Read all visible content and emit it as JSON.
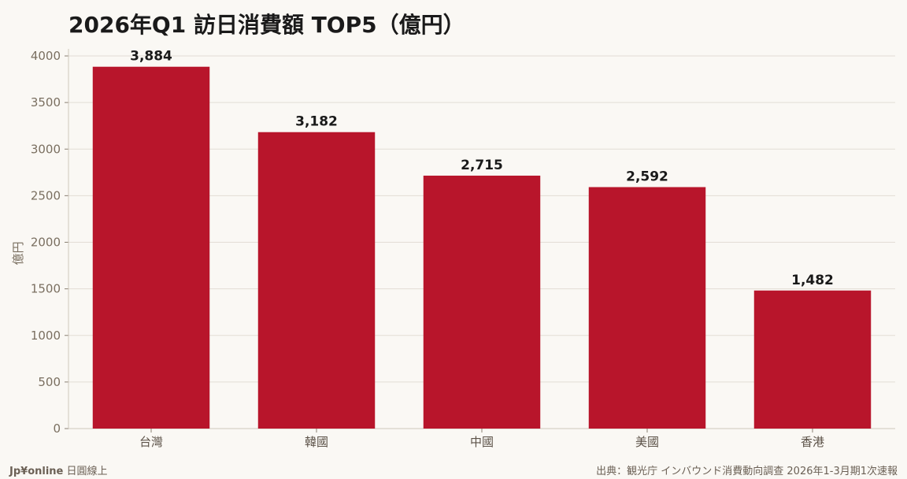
{
  "chart_data": {
    "type": "bar",
    "title": "2026年Q1 訪日消費額 TOP5（億円）",
    "ylabel": "億円",
    "categories": [
      "台灣",
      "韓國",
      "中國",
      "美國",
      "香港"
    ],
    "values": [
      3884,
      3182,
      2715,
      2592,
      1482
    ],
    "value_labels": [
      "3,884",
      "3,182",
      "2,715",
      "2,592",
      "1,482"
    ],
    "ylim": [
      0,
      4000
    ],
    "yticks": [
      0,
      500,
      1000,
      1500,
      2000,
      2500,
      3000,
      3500,
      4000
    ],
    "grid": true,
    "bar_color": "#b8152b"
  },
  "footer": {
    "brand": "Jp¥online",
    "brand_sub": "日圓線上",
    "source": "出典：観光庁 インバウンド消費動向調查 2026年1-3月期1次速報"
  }
}
